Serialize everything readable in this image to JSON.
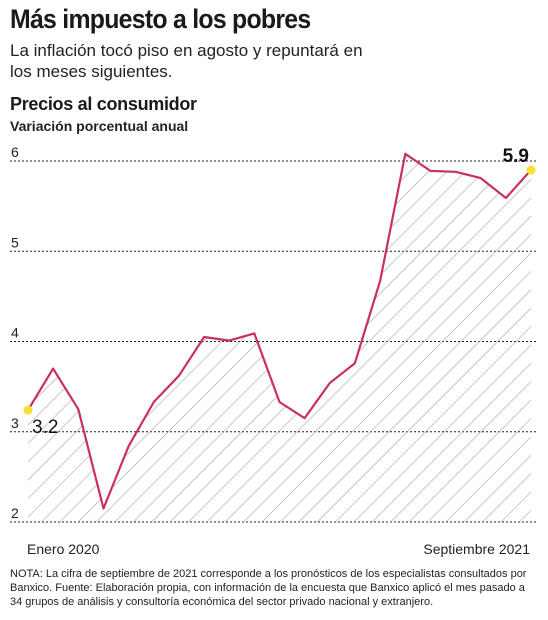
{
  "header": {
    "title": "Más impuesto a los pobres",
    "deck": "La inflación tocó piso en agosto y repuntará en los meses siguientes."
  },
  "chart_data": {
    "type": "area",
    "title": "Precios al consumidor",
    "subtitle": "Variación porcentual anual",
    "x": [
      "2020-01",
      "2020-02",
      "2020-03",
      "2020-04",
      "2020-05",
      "2020-06",
      "2020-07",
      "2020-08",
      "2020-09",
      "2020-10",
      "2020-11",
      "2020-12",
      "2021-01",
      "2021-02",
      "2021-03",
      "2021-04",
      "2021-05",
      "2021-06",
      "2021-07",
      "2021-08",
      "2021-09"
    ],
    "series": [
      {
        "values": [
          3.24,
          3.7,
          3.25,
          2.15,
          2.84,
          3.33,
          3.62,
          4.05,
          4.01,
          4.09,
          3.33,
          3.15,
          3.54,
          3.76,
          4.67,
          6.08,
          5.89,
          5.88,
          5.81,
          5.59,
          5.9
        ]
      }
    ],
    "ylim": [
      2,
      6
    ],
    "yticks": [
      2,
      3,
      4,
      5,
      6
    ],
    "x_tick_labels": [
      "Enero 2020",
      "Septiembre 2021"
    ],
    "annotations": {
      "start": "3.2",
      "end": "5.9"
    },
    "grid": true,
    "colors": {
      "line": "#c8325a",
      "hatch": "#a9a9a9",
      "marker": "#f7e032",
      "grid": "#222222"
    }
  },
  "note": "NOTA: La cifra de septiembre de 2021 corresponde a los pronósticos de los especialistas consultados por Banxico. Fuente: Elaboración propia, con información de la encuesta que Banxico aplicó el mes pasado a 34 grupos de análisis y consultoría económica del sector privado nacional y extranjero."
}
